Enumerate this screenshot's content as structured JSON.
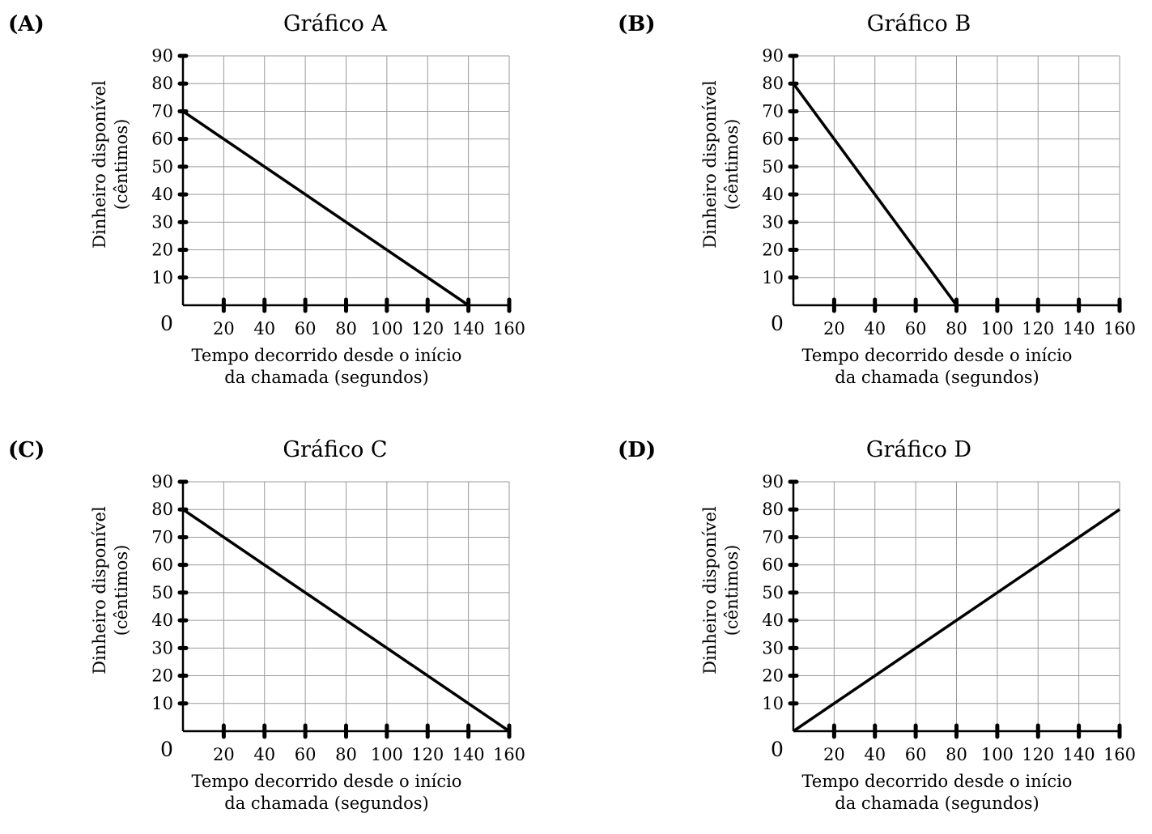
{
  "chart_data": [
    {
      "type": "line",
      "panel_label": "(A)",
      "title": "Gráfico A",
      "xlabel": [
        "Tempo decorrido desde o início",
        "da chamada (segundos)"
      ],
      "ylabel": [
        "Dinheiro disponível",
        "(cêntimos)"
      ],
      "origin_label": "0",
      "xlim": [
        0,
        160
      ],
      "ylim": [
        0,
        90
      ],
      "x_ticks": [
        20,
        40,
        60,
        80,
        100,
        120,
        140,
        160
      ],
      "y_ticks": [
        10,
        20,
        30,
        40,
        50,
        60,
        70,
        80,
        90
      ],
      "grid": true,
      "series": [
        {
          "x": [
            0,
            140
          ],
          "y": [
            70,
            0
          ]
        }
      ]
    },
    {
      "type": "line",
      "panel_label": "(B)",
      "title": "Gráfico B",
      "xlabel": [
        "Tempo decorrido desde o início",
        "da chamada (segundos)"
      ],
      "ylabel": [
        "Dinheiro disponível",
        "(cêntimos)"
      ],
      "origin_label": "0",
      "xlim": [
        0,
        160
      ],
      "ylim": [
        0,
        90
      ],
      "x_ticks": [
        20,
        40,
        60,
        80,
        100,
        120,
        140,
        160
      ],
      "y_ticks": [
        10,
        20,
        30,
        40,
        50,
        60,
        70,
        80,
        90
      ],
      "grid": true,
      "series": [
        {
          "x": [
            0,
            80
          ],
          "y": [
            80,
            0
          ]
        }
      ]
    },
    {
      "type": "line",
      "panel_label": "(C)",
      "title": "Gráfico C",
      "xlabel": [
        "Tempo decorrido desde o início",
        "da chamada (segundos)"
      ],
      "ylabel": [
        "Dinheiro disponível",
        "(cêntimos)"
      ],
      "origin_label": "0",
      "xlim": [
        0,
        160
      ],
      "ylim": [
        0,
        90
      ],
      "x_ticks": [
        20,
        40,
        60,
        80,
        100,
        120,
        140,
        160
      ],
      "y_ticks": [
        10,
        20,
        30,
        40,
        50,
        60,
        70,
        80,
        90
      ],
      "grid": true,
      "series": [
        {
          "x": [
            0,
            160
          ],
          "y": [
            80,
            0
          ]
        }
      ]
    },
    {
      "type": "line",
      "panel_label": "(D)",
      "title": "Gráfico D",
      "xlabel": [
        "Tempo decorrido desde o início",
        "da chamada (segundos)"
      ],
      "ylabel": [
        "Dinheiro disponível",
        "(cêntimos)"
      ],
      "origin_label": "0",
      "xlim": [
        0,
        160
      ],
      "ylim": [
        0,
        90
      ],
      "x_ticks": [
        20,
        40,
        60,
        80,
        100,
        120,
        140,
        160
      ],
      "y_ticks": [
        10,
        20,
        30,
        40,
        50,
        60,
        70,
        80,
        90
      ],
      "grid": true,
      "series": [
        {
          "x": [
            0,
            160
          ],
          "y": [
            0,
            80
          ]
        }
      ]
    }
  ]
}
